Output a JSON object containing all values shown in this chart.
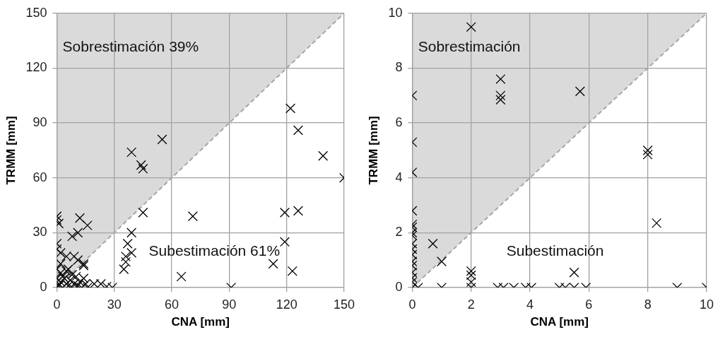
{
  "chart_data": [
    {
      "type": "scatter",
      "xlabel": "CNA [mm]",
      "ylabel": "TRMM [mm]",
      "xlim": [
        0,
        150
      ],
      "ylim": [
        0,
        150
      ],
      "xticks": [
        0,
        30,
        60,
        90,
        120,
        150
      ],
      "yticks": [
        0,
        30,
        60,
        90,
        120,
        150
      ],
      "grid": true,
      "legend": false,
      "marker": "cross",
      "annotations": [
        "Sobrestimación 39%",
        "Subestimación 61%"
      ],
      "series": [
        {
          "type": "line",
          "color": "#a6a6a6",
          "line_style": "dashed",
          "marker": "none",
          "x": [
            0,
            150
          ],
          "values": [
            0,
            150
          ],
          "lower": [
            0,
            150
          ],
          "upper": [
            150,
            150
          ]
        },
        {
          "color": "#000000",
          "x": [
            122,
            126,
            139,
            150,
            55,
            39,
            44,
            45,
            45,
            71,
            119,
            126,
            119,
            113,
            123,
            65,
            91,
            39,
            37,
            39,
            36,
            35,
            36,
            29,
            26,
            23,
            19.5,
            0,
            0,
            1,
            12,
            16,
            11,
            8,
            0,
            0,
            2,
            5,
            9,
            11,
            14,
            14,
            2,
            0,
            0,
            1,
            2,
            3,
            4,
            5,
            6,
            7,
            8,
            9,
            10,
            11,
            12,
            13,
            14,
            15,
            16,
            2,
            5,
            8,
            0,
            0,
            3,
            6
          ],
          "values": [
            98,
            86,
            72,
            60,
            81,
            74,
            67,
            65,
            41,
            39,
            41,
            42,
            25,
            13,
            9,
            6,
            0,
            30,
            24,
            19,
            17,
            10,
            14,
            0,
            0.5,
            2,
            2,
            39,
            37,
            35,
            38,
            34,
            30,
            28,
            24,
            21,
            19,
            17,
            17,
            15,
            13,
            12,
            13,
            10,
            0,
            1,
            3,
            0,
            5,
            2,
            1,
            4,
            0,
            2,
            6,
            1,
            3,
            0,
            5,
            2,
            0,
            8,
            9,
            7,
            5,
            3,
            6,
            10
          ]
        }
      ]
    },
    {
      "type": "scatter",
      "xlabel": "CNA [mm]",
      "ylabel": "TRMM [mm]",
      "xlim": [
        0,
        10
      ],
      "ylim": [
        0,
        10
      ],
      "xticks": [
        0,
        2,
        4,
        6,
        8,
        10
      ],
      "yticks": [
        0,
        2,
        4,
        6,
        8,
        10
      ],
      "grid": true,
      "legend": false,
      "marker": "cross",
      "annotations": [
        "Sobrestimación",
        "Subestimación"
      ],
      "series": [
        {
          "type": "line",
          "color": "#a6a6a6",
          "line_style": "dashed",
          "marker": "none",
          "x": [
            0,
            10
          ],
          "values": [
            0,
            10
          ],
          "lower": [
            0,
            10
          ],
          "upper": [
            10,
            10
          ]
        },
        {
          "color": "#000000",
          "x": [
            2,
            0,
            3,
            3,
            3,
            5.7,
            8,
            8,
            8.3,
            0,
            0,
            0,
            0,
            0,
            0,
            0,
            0,
            0,
            0,
            0,
            0,
            0,
            0,
            0,
            0.7,
            1,
            2,
            2,
            2,
            2,
            5.5,
            0.2,
            1,
            2.9,
            3.1,
            3.45,
            3.85,
            4.05,
            5,
            5.2,
            5.5,
            5.9,
            9,
            10,
            0
          ],
          "values": [
            9.5,
            7,
            7.6,
            7,
            6.85,
            7.15,
            5,
            4.85,
            2.35,
            5.3,
            4.2,
            2.8,
            2.3,
            2.2,
            2,
            1.9,
            1.6,
            1.4,
            1.2,
            0.95,
            0.8,
            0.55,
            0.35,
            0.2,
            1.6,
            0.95,
            0.6,
            0.45,
            0,
            0.2,
            0.55,
            0,
            0,
            0,
            0,
            0,
            0,
            0,
            0,
            0,
            0,
            0,
            0,
            0,
            0
          ]
        }
      ]
    }
  ]
}
